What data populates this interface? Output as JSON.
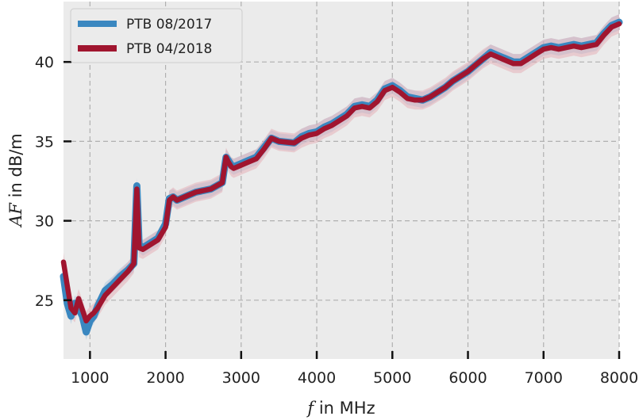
{
  "chart_data": {
    "type": "line",
    "xlabel": {
      "symbol": "f",
      "text": " in MHz"
    },
    "ylabel": {
      "symbol": "AF",
      "text": " in dB/m"
    },
    "xlim": [
      650,
      8000
    ],
    "ylim": [
      21.3,
      43.8
    ],
    "xticks": [
      1000,
      2000,
      3000,
      4000,
      5000,
      6000,
      7000,
      8000
    ],
    "yticks": [
      25,
      30,
      35,
      40
    ],
    "grid": true,
    "legend": "top-left",
    "series": [
      {
        "name": "PTB 08/2017",
        "color": "#3a87c0",
        "band_color": "#9fc3e0",
        "uncertainty": 0.5,
        "x": [
          650,
          700,
          750,
          800,
          850,
          900,
          950,
          1000,
          1050,
          1100,
          1200,
          1300,
          1400,
          1500,
          1580,
          1620,
          1650,
          1700,
          1800,
          1900,
          2000,
          2050,
          2100,
          2150,
          2300,
          2400,
          2500,
          2600,
          2750,
          2800,
          2830,
          2870,
          2900,
          3000,
          3100,
          3200,
          3300,
          3400,
          3500,
          3700,
          3800,
          3900,
          4000,
          4100,
          4200,
          4300,
          4400,
          4500,
          4600,
          4700,
          4800,
          4900,
          5000,
          5100,
          5200,
          5300,
          5400,
          5500,
          5600,
          5700,
          5800,
          5900,
          6000,
          6100,
          6200,
          6300,
          6400,
          6500,
          6600,
          6700,
          6800,
          6900,
          7000,
          7100,
          7200,
          7300,
          7400,
          7500,
          7600,
          7700,
          7800,
          7900,
          8000
        ],
        "y": [
          26.5,
          24.8,
          24.0,
          24.8,
          24.5,
          24.0,
          23.0,
          23.7,
          24.0,
          24.6,
          25.6,
          26.0,
          26.5,
          26.9,
          27.3,
          32.2,
          28.5,
          28.3,
          28.6,
          28.9,
          29.8,
          31.4,
          31.5,
          31.3,
          31.6,
          31.8,
          31.9,
          32.0,
          32.4,
          34.0,
          33.8,
          33.5,
          33.4,
          33.6,
          33.8,
          34.0,
          34.6,
          35.2,
          35.0,
          34.9,
          35.3,
          35.5,
          35.6,
          35.9,
          36.1,
          36.4,
          36.7,
          37.2,
          37.3,
          37.2,
          37.6,
          38.3,
          38.5,
          38.2,
          37.8,
          37.7,
          37.6,
          37.8,
          38.1,
          38.4,
          38.8,
          39.1,
          39.4,
          39.8,
          40.2,
          40.6,
          40.4,
          40.2,
          40.0,
          40.0,
          40.3,
          40.6,
          40.9,
          41.0,
          40.9,
          41.0,
          41.1,
          41.0,
          41.1,
          41.2,
          41.8,
          42.3,
          42.5
        ]
      },
      {
        "name": "PTB 04/2018",
        "color": "#a0152f",
        "band_color": "#e4a3ae",
        "uncertainty": 0.6,
        "x": [
          650,
          700,
          750,
          800,
          850,
          900,
          950,
          1000,
          1050,
          1100,
          1200,
          1300,
          1400,
          1500,
          1580,
          1620,
          1650,
          1700,
          1800,
          1900,
          2000,
          2050,
          2100,
          2150,
          2300,
          2400,
          2500,
          2600,
          2750,
          2800,
          2830,
          2870,
          2900,
          3000,
          3100,
          3200,
          3300,
          3400,
          3500,
          3700,
          3800,
          3900,
          4000,
          4100,
          4200,
          4300,
          4400,
          4500,
          4600,
          4700,
          4800,
          4900,
          5000,
          5100,
          5200,
          5300,
          5400,
          5500,
          5600,
          5700,
          5800,
          5900,
          6000,
          6100,
          6200,
          6300,
          6400,
          6500,
          6600,
          6700,
          6800,
          6900,
          7000,
          7100,
          7200,
          7300,
          7400,
          7500,
          7600,
          7700,
          7800,
          7900,
          8000
        ],
        "y": [
          27.4,
          25.9,
          24.5,
          24.2,
          25.1,
          24.4,
          23.7,
          24.0,
          24.2,
          24.5,
          25.3,
          25.8,
          26.3,
          26.8,
          27.3,
          32.0,
          28.3,
          28.2,
          28.5,
          28.8,
          29.6,
          31.3,
          31.5,
          31.3,
          31.6,
          31.8,
          31.9,
          32.0,
          32.4,
          34.0,
          33.7,
          33.4,
          33.3,
          33.5,
          33.7,
          33.9,
          34.5,
          35.2,
          35.0,
          34.9,
          35.2,
          35.4,
          35.5,
          35.8,
          36.0,
          36.3,
          36.6,
          37.1,
          37.2,
          37.1,
          37.5,
          38.2,
          38.4,
          38.1,
          37.7,
          37.6,
          37.6,
          37.8,
          38.1,
          38.4,
          38.8,
          39.1,
          39.4,
          39.8,
          40.2,
          40.5,
          40.3,
          40.1,
          39.9,
          39.9,
          40.2,
          40.5,
          40.8,
          40.9,
          40.8,
          40.9,
          41.0,
          40.9,
          41.0,
          41.1,
          41.7,
          42.2,
          42.4
        ]
      }
    ]
  }
}
